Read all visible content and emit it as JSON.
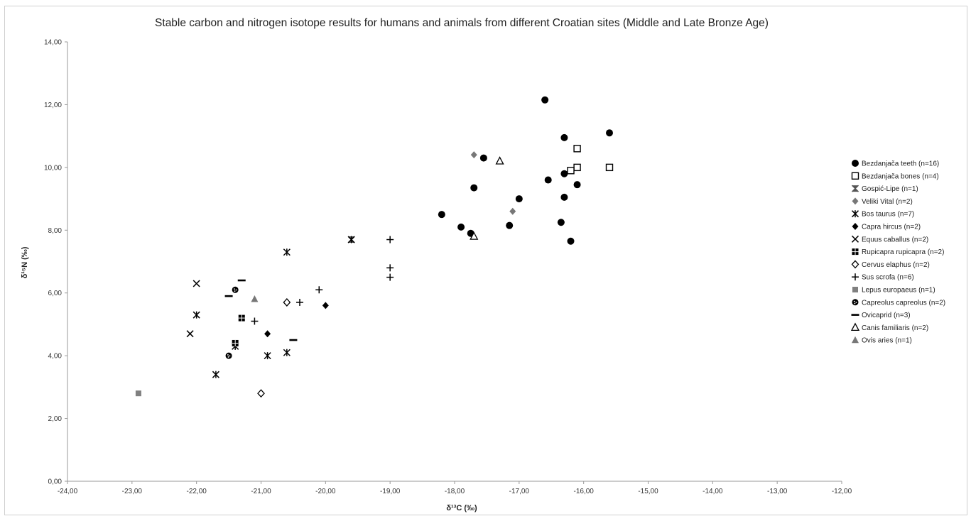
{
  "chart_data": {
    "type": "scatter",
    "title": "Stable carbon and nitrogen isotope results for humans and animals from different Croatian sites (Middle and Late Bronze Age)",
    "xlabel": "δ¹³C (‰)",
    "ylabel": "δ¹⁵N (‰)",
    "xlim": [
      -24,
      -12
    ],
    "ylim": [
      0,
      14
    ],
    "xticks": [
      -24,
      -23,
      -22,
      -21,
      -20,
      -19,
      -18,
      -17,
      -16,
      -15,
      -14,
      -13,
      -12
    ],
    "yticks": [
      0,
      2,
      4,
      6,
      8,
      10,
      12,
      14
    ],
    "xtick_labels": [
      "-24,00",
      "-23,00",
      "-22,00",
      "-21,00",
      "-20,00",
      "-19,00",
      "-18,00",
      "-17,00",
      "-16,00",
      "-15,00",
      "-14,00",
      "-13,00",
      "-12,00"
    ],
    "ytick_labels": [
      "0,00",
      "2,00",
      "4,00",
      "6,00",
      "8,00",
      "10,00",
      "12,00",
      "14,00"
    ],
    "grid": false,
    "legend_position": "right",
    "series": [
      {
        "name": "Bezdanjača teeth (n=16)",
        "marker": "circle",
        "color": "#000000",
        "points": [
          [
            -16.6,
            12.15
          ],
          [
            -16.3,
            10.95
          ],
          [
            -15.6,
            11.1
          ],
          [
            -17.55,
            10.3
          ],
          [
            -17.7,
            9.35
          ],
          [
            -16.3,
            9.8
          ],
          [
            -16.55,
            9.6
          ],
          [
            -17.0,
            9.0
          ],
          [
            -16.3,
            9.05
          ],
          [
            -16.1,
            9.45
          ],
          [
            -18.2,
            8.5
          ],
          [
            -17.9,
            8.1
          ],
          [
            -17.75,
            7.9
          ],
          [
            -17.15,
            8.15
          ],
          [
            -16.35,
            8.25
          ],
          [
            -16.2,
            7.65
          ]
        ]
      },
      {
        "name": "Bezdanjača bones (n=4)",
        "marker": "square-open",
        "color": "#000000",
        "points": [
          [
            -16.1,
            10.6
          ],
          [
            -16.1,
            10.0
          ],
          [
            -16.2,
            9.9
          ],
          [
            -15.6,
            10.0
          ]
        ]
      },
      {
        "name": "Gospić-Lipe (n=1)",
        "marker": "hourglass",
        "color": "#555555",
        "points": [
          [
            -19.6,
            7.7
          ]
        ]
      },
      {
        "name": "Veliki Vital (n=2)",
        "marker": "diamond",
        "color": "#777777",
        "points": [
          [
            -17.7,
            10.4
          ],
          [
            -17.1,
            8.6
          ]
        ]
      },
      {
        "name": "Bos taurus (n=7)",
        "marker": "asterisk",
        "color": "#000000",
        "points": [
          [
            -20.6,
            7.3
          ],
          [
            -22.0,
            5.3
          ],
          [
            -21.4,
            4.3
          ],
          [
            -21.7,
            3.4
          ],
          [
            -20.9,
            4.0
          ],
          [
            -20.6,
            4.1
          ],
          [
            -19.6,
            7.7
          ]
        ]
      },
      {
        "name": "Capra hircus (n=2)",
        "marker": "diamond",
        "color": "#000000",
        "points": [
          [
            -20.0,
            5.6
          ],
          [
            -20.9,
            4.7
          ]
        ]
      },
      {
        "name": "Equus caballus (n=2)",
        "marker": "x",
        "color": "#000000",
        "points": [
          [
            -22.0,
            6.3
          ],
          [
            -22.1,
            4.7
          ]
        ]
      },
      {
        "name": "Rupicapra rupicapra (n=2)",
        "marker": "square-grid",
        "color": "#000000",
        "points": [
          [
            -21.3,
            5.2
          ],
          [
            -21.4,
            4.4
          ]
        ]
      },
      {
        "name": "Cervus elaphus (n=2)",
        "marker": "diamond-open",
        "color": "#000000",
        "points": [
          [
            -20.6,
            5.7
          ],
          [
            -21.0,
            2.8
          ]
        ]
      },
      {
        "name": "Sus scrofa (n=6)",
        "marker": "plus",
        "color": "#000000",
        "points": [
          [
            -19.0,
            7.7
          ],
          [
            -19.0,
            6.8
          ],
          [
            -19.0,
            6.5
          ],
          [
            -20.1,
            6.1
          ],
          [
            -20.4,
            5.7
          ],
          [
            -21.1,
            5.1
          ]
        ]
      },
      {
        "name": "Lepus europaeus (n=1)",
        "marker": "square",
        "color": "#808080",
        "points": [
          [
            -22.9,
            2.8
          ]
        ]
      },
      {
        "name": "Capreolus capreolus (n=2)",
        "marker": "circle-pattern",
        "color": "#000000",
        "points": [
          [
            -21.4,
            6.1
          ],
          [
            -21.5,
            4.0
          ]
        ]
      },
      {
        "name": "Ovicaprid (n=3)",
        "marker": "dash",
        "color": "#000000",
        "points": [
          [
            -21.3,
            6.4
          ],
          [
            -21.5,
            5.9
          ],
          [
            -20.5,
            4.5
          ]
        ]
      },
      {
        "name": "Canis familiaris (n=2)",
        "marker": "triangle-open",
        "color": "#000000",
        "points": [
          [
            -17.3,
            10.2
          ],
          [
            -17.7,
            7.8
          ]
        ]
      },
      {
        "name": "Ovis aries (n=1)",
        "marker": "triangle",
        "color": "#777777",
        "points": [
          [
            -21.1,
            5.8
          ]
        ]
      }
    ]
  }
}
